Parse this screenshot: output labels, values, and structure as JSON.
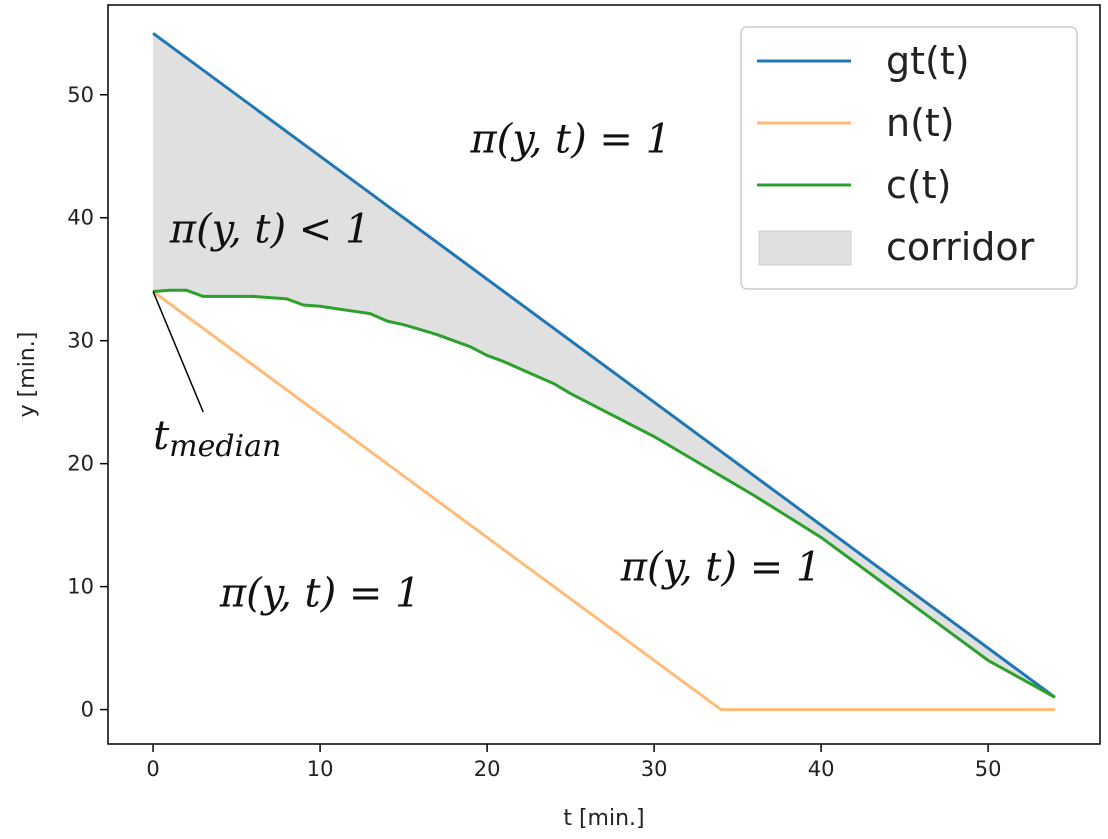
{
  "chart_data": {
    "type": "line",
    "xlabel": "t [min.]",
    "ylabel": "y [min.]",
    "xlim": [
      -2.7,
      56.7
    ],
    "ylim": [
      -2.8,
      57.3
    ],
    "xticks": [
      0,
      10,
      20,
      30,
      40,
      50
    ],
    "yticks": [
      0,
      10,
      20,
      30,
      40,
      50
    ],
    "grid": false,
    "legend_position": "top-right",
    "series": [
      {
        "name": "gt(t)",
        "color": "#1f77b4",
        "x": [
          0,
          54
        ],
        "y": [
          55,
          1
        ]
      },
      {
        "name": "n(t)",
        "color": "#ffbb78",
        "x": [
          0,
          34,
          54
        ],
        "y": [
          34,
          0,
          0
        ]
      },
      {
        "name": "c(t)",
        "color": "#2ca02c",
        "x": [
          0,
          1,
          2,
          3,
          4,
          5,
          6,
          7,
          8,
          9,
          10,
          11,
          12,
          13,
          14,
          15,
          16,
          17,
          18,
          19,
          20,
          21,
          22,
          23,
          24,
          25,
          26,
          27,
          28,
          29,
          30,
          32,
          34,
          36,
          38,
          40,
          42,
          44,
          46,
          48,
          50,
          52,
          54
        ],
        "y": [
          34.0,
          34.1,
          34.1,
          33.6,
          33.6,
          33.6,
          33.6,
          33.5,
          33.4,
          32.9,
          32.8,
          32.6,
          32.4,
          32.2,
          31.6,
          31.3,
          30.9,
          30.5,
          30.0,
          29.5,
          28.8,
          28.3,
          27.7,
          27.1,
          26.5,
          25.7,
          25.0,
          24.3,
          23.6,
          22.9,
          22.2,
          20.6,
          19.0,
          17.4,
          15.7,
          14.0,
          12.0,
          10.0,
          8.0,
          6.0,
          4.0,
          2.5,
          1.0
        ]
      }
    ],
    "corridor": {
      "name": "corridor",
      "color": "#e0e0e0"
    },
    "annotations": [
      {
        "text": "π(y, t) = 1",
        "x": 19,
        "y": 45.3
      },
      {
        "text": "π(y, t) < 1",
        "x": 1.0,
        "y": 38.0
      },
      {
        "text": "π(y, t) = 1",
        "x": 4.0,
        "y": 8.4
      },
      {
        "text": "π(y, t) = 1",
        "x": 28.0,
        "y": 10.5
      }
    ],
    "median_label": {
      "base": "t",
      "subscript": "median",
      "x": 0.0,
      "y": 21.2,
      "arrow_from": [
        3.0,
        24.2
      ],
      "arrow_to": [
        0.0,
        34.0
      ]
    }
  }
}
